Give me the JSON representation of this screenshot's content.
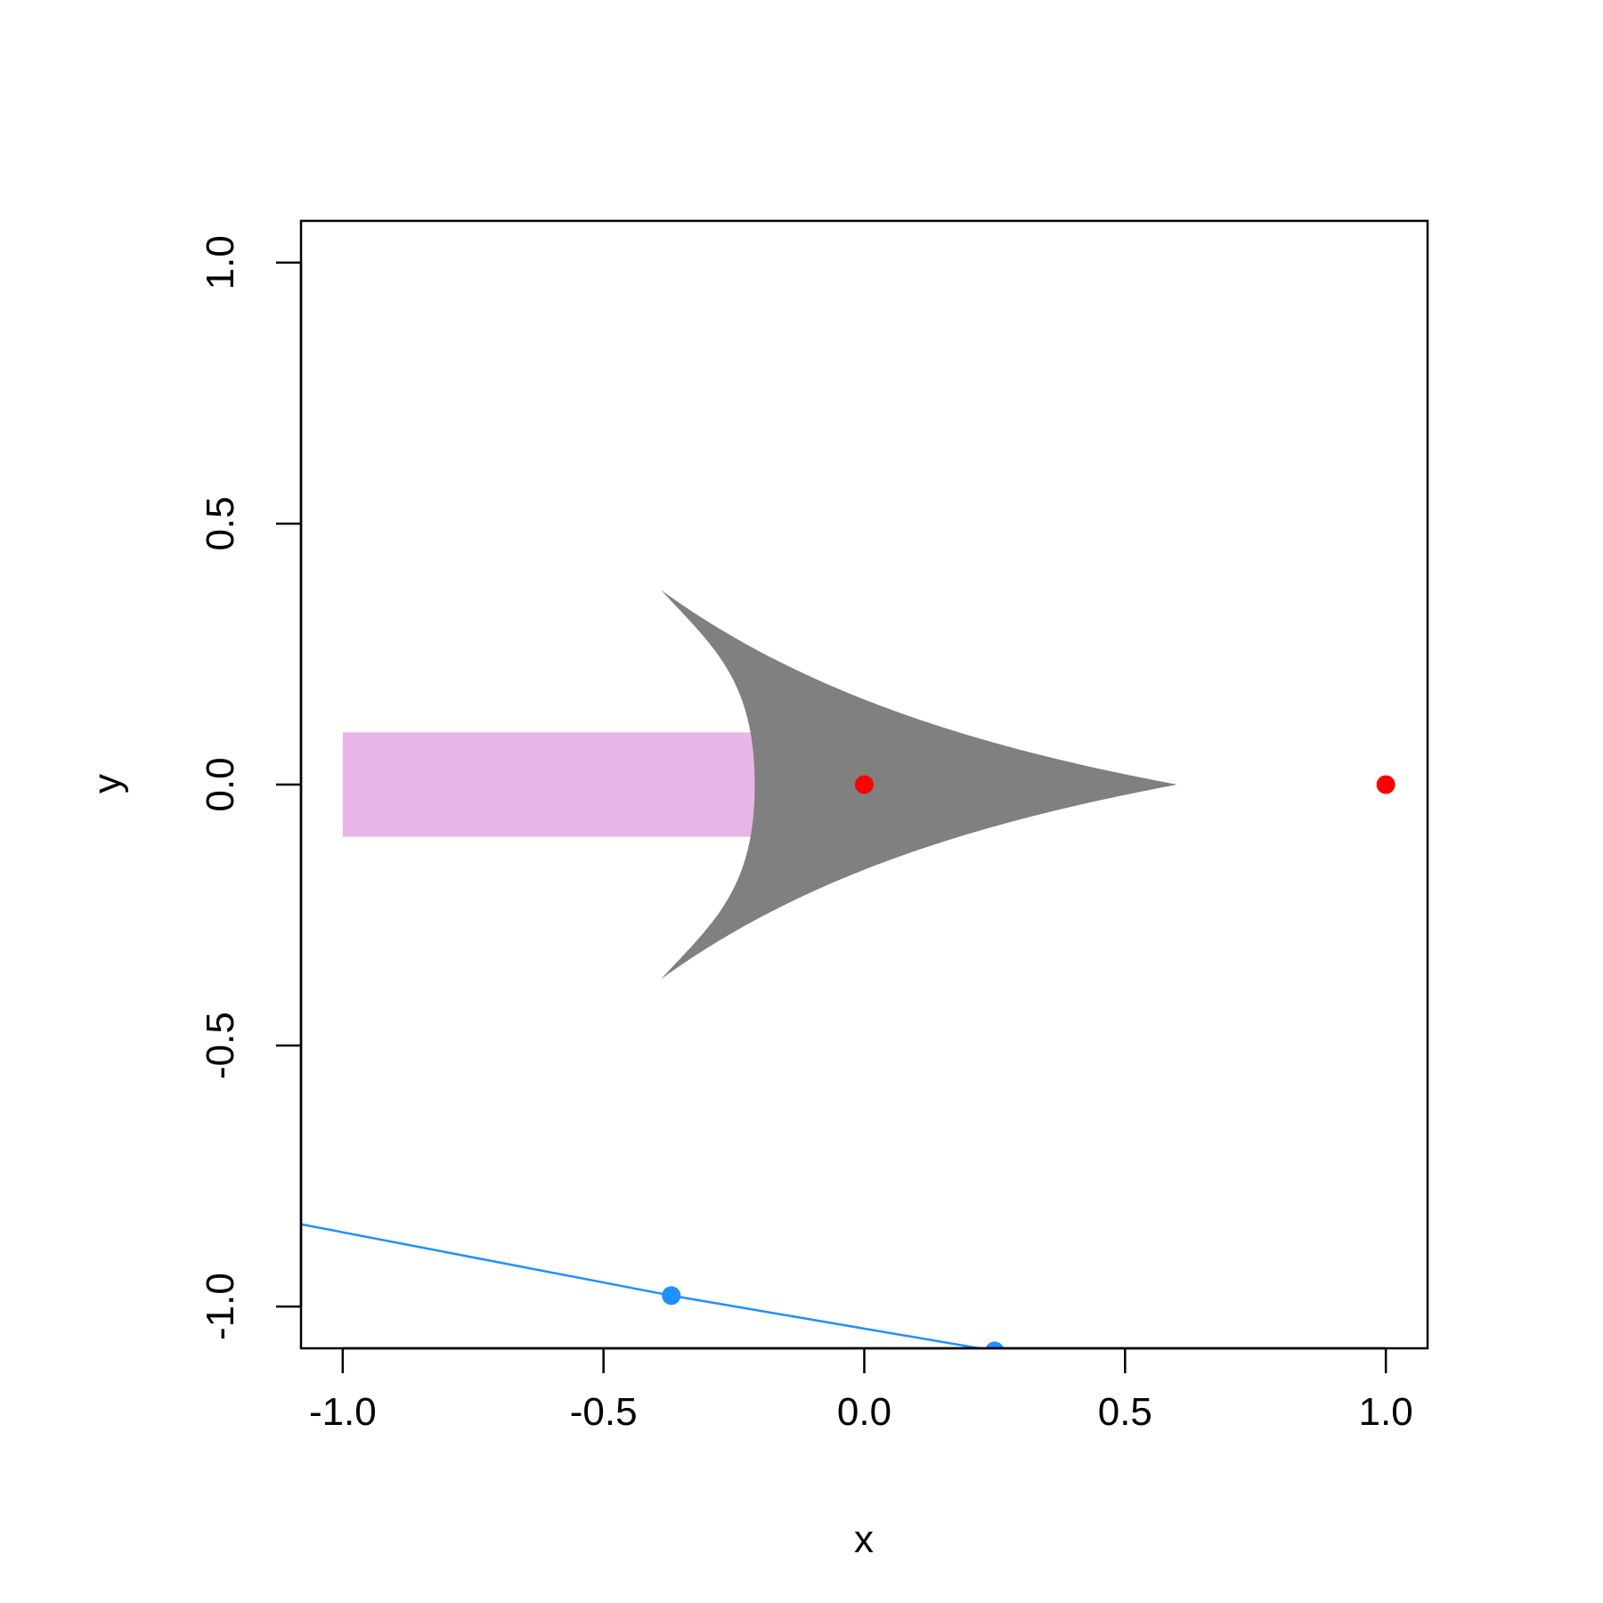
{
  "chart_data": {
    "type": "scatter",
    "xlabel": "x",
    "ylabel": "y",
    "xlim": [
      -1.08,
      1.08
    ],
    "ylim": [
      -1.08,
      1.08
    ],
    "x_ticks": [
      {
        "value": -1.0,
        "label": "-1.0"
      },
      {
        "value": -0.5,
        "label": "-0.5"
      },
      {
        "value": 0.0,
        "label": "0.0"
      },
      {
        "value": 0.5,
        "label": "0.5"
      },
      {
        "value": 1.0,
        "label": "1.0"
      }
    ],
    "y_ticks": [
      {
        "value": -1.0,
        "label": "-1.0"
      },
      {
        "value": -0.5,
        "label": "-0.5"
      },
      {
        "value": 0.0,
        "label": "0.0"
      },
      {
        "value": 0.5,
        "label": "0.5"
      },
      {
        "value": 1.0,
        "label": "1.0"
      }
    ],
    "grid": false,
    "red_points": {
      "color": "#ff0000",
      "points": [
        {
          "x": 0.0,
          "y": 0.0
        },
        {
          "x": 1.0,
          "y": 0.0
        }
      ]
    },
    "blue_line": {
      "color": "#1e90ff",
      "points": [
        {
          "x": -1.08,
          "y": -0.8423
        },
        {
          "x": -0.37,
          "y": -0.979
        },
        {
          "x": 0.25,
          "y": -1.085
        }
      ],
      "markers": [
        {
          "x": -0.37,
          "y": -0.979
        },
        {
          "x": 0.25,
          "y": -1.085
        }
      ]
    },
    "pink_rect": {
      "color": "#e3a2e0",
      "opacity": 0.8,
      "x": [
        -1.0,
        0.0
      ],
      "y": [
        -0.1,
        0.1
      ]
    },
    "gray_arrowhead": {
      "color": "#808080",
      "tip": {
        "x": 0.6,
        "y": 0.0
      },
      "back_top": {
        "x": -0.39,
        "y": 0.373
      },
      "back_bottom": {
        "x": -0.39,
        "y": -0.373
      },
      "notch": {
        "x": -0.21,
        "y": 0.0
      }
    }
  }
}
